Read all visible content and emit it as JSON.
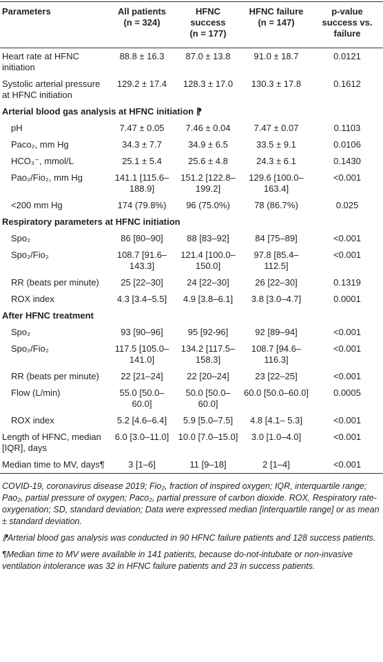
{
  "table": {
    "header": [
      "Parameters",
      [
        "All patients",
        "(n = 324)"
      ],
      [
        "HFNC success",
        "(n = 177)"
      ],
      [
        "HFNC failure",
        "(n = 147)"
      ],
      "p-value success vs. failure"
    ],
    "body": [
      {
        "rows": [
          [
            "Heart rate at HFNC initiation",
            "88.8 ± 16.3",
            "87.0 ± 13.8",
            "91.0 ± 18.7",
            "0.0121"
          ],
          [
            "Systolic arterial pressure at HFNC initiation",
            "129.2 ± 17.4",
            "128.3 ± 17.0",
            "130.3 ± 17.8",
            "0.1612"
          ]
        ]
      },
      {
        "title": "Arterial blood gas analysis at HFNC initiation ⁋",
        "rows": [
          [
            "pH",
            "7.47 ± 0.05",
            "7.46 ± 0.04",
            "7.47 ± 0.07",
            "0.1103"
          ],
          [
            "Paco₂, mm Hg",
            "34.3 ± 7.7",
            "34.9 ± 6.5",
            "33.5 ± 9.1",
            "0.0106"
          ],
          [
            "HCO₃⁻, mmol/L",
            "25.1 ± 5.4",
            "25.6 ± 4.8",
            "24.3 ± 6.1",
            "0.1430"
          ],
          [
            "Pao₂/Fio₂, mm Hg",
            "141.1 [115.6–188.9]",
            "151.2 [122.8–199.2]",
            "129.6 [100.0–163.4]",
            "<0.001"
          ],
          [
            "<200 mm Hg",
            "174 (79.8%)",
            "96 (75.0%)",
            "78 (86.7%)",
            "0.025"
          ]
        ]
      },
      {
        "title": "Respiratory parameters at HFNC initiation",
        "rows": [
          [
            "Spo₂",
            "86 [80–90]",
            "88 [83–92]",
            "84 [75–89]",
            "<0.001"
          ],
          [
            "Spo₂/Fio₂",
            "108.7 [91.6–143.3]",
            "121.4 [100.0–150.0]",
            "97.8 [85.4–112.5]",
            "<0.001"
          ],
          [
            "RR (beats per minute)",
            "25 [22–30]",
            "24 [22–30]",
            "26 [22–30]",
            "0.1319"
          ],
          [
            "ROX index",
            "4.3 [3.4–5.5]",
            "4.9 [3.8–6.1]",
            "3.8 [3.0–4.7]",
            "0.0001"
          ]
        ]
      },
      {
        "title": "After HFNC treatment",
        "rows": [
          [
            "Spo₂",
            "93 [90–96]",
            "95 [92-96]",
            "92 [89–94]",
            "<0.001"
          ],
          [
            "Spo₂/Fio₂",
            "117.5 [105.0–141.0]",
            "134.2 [117.5–158.3]",
            "108.7 [94.6–116.3]",
            "<0.001"
          ],
          [
            "RR (beats per minute)",
            "22 [21–24]",
            "22 [20–24]",
            "23 [22–25]",
            "<0.001"
          ],
          [
            "Flow (L/min)",
            "55.0 [50.0–60.0]",
            "50.0 [50.0–60.0]",
            "60.0 [50.0–60.0]",
            "0.0005"
          ],
          [
            "ROX index",
            "5.2 [4.6–6.4]",
            "5.9 [5.0–7.5]",
            "4.8 [4.1– 5.3]",
            "<0.001"
          ]
        ]
      },
      {
        "rows": [
          [
            "Length of HFNC, median [IQR], days",
            "6.0 [3.0–11.0]",
            "10.0 [7.0–15.0]",
            "3.0 [1.0–4.0]",
            "<0.001"
          ],
          [
            "Median time to MV, days¶",
            "3 [1–6]",
            "11 [9–18]",
            "2 [1–4]",
            "<0.001"
          ]
        ]
      }
    ]
  },
  "notes": [
    "COVID-19, coronavirus disease 2019; Fio₂, fraction of inspired oxygen; IQR, interquartile range; Pao₂, partial pressure of oxygen; Paco₂, partial pressure of carbon dioxide. ROX, Respiratory rate-oxygenation; SD, standard deviation; Data were expressed median [interquartile range] or as mean ± standard deviation.",
    "⁋Arterial blood gas analysis was conducted in 90 HFNC failure patients and 128 success patients.",
    "¶Median time to MV were available in 141 patients, because do-not-intubate or non-invasive ventilation intolerance was 32 in HFNC failure patients and 23 in success patients."
  ]
}
